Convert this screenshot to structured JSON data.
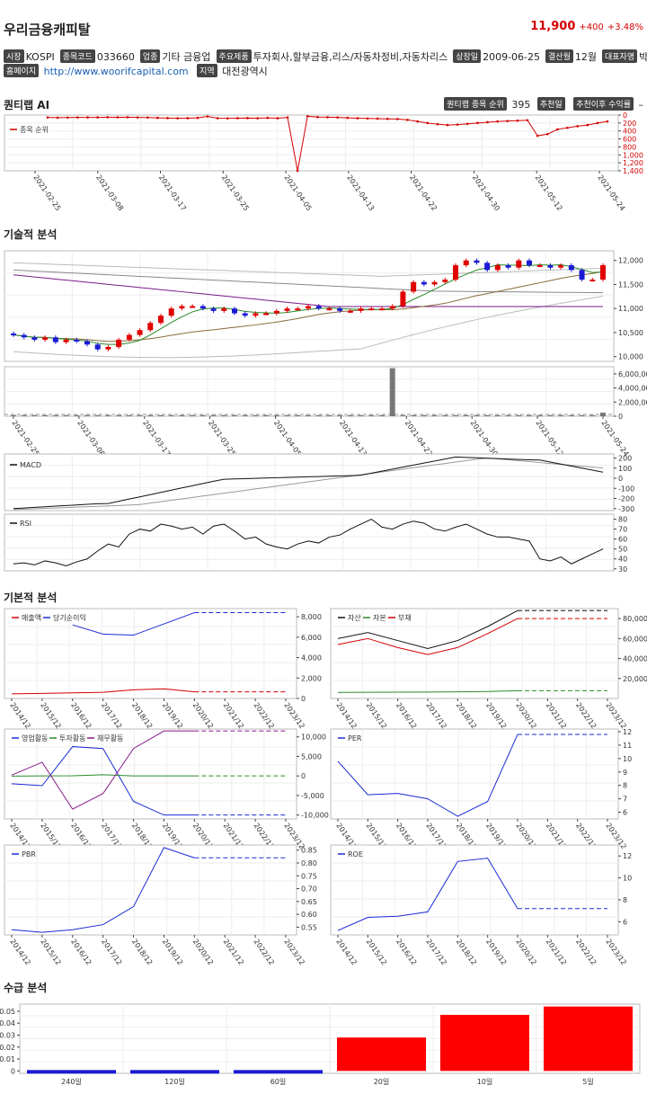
{
  "header": {
    "company": "우리금융캐피탈",
    "price": "11,900",
    "change": "+400",
    "change_pct": "+3.48%",
    "price_color": "#d40000"
  },
  "info_row1": [
    {
      "tag": "시장",
      "value": "KOSPI"
    },
    {
      "tag": "종목코드",
      "value": "033660"
    },
    {
      "tag": "업종",
      "value": "기타 금융업"
    },
    {
      "tag": "주요제품",
      "value": "투자회사,할부금융,리스/자동차정비,자동차리스"
    },
    {
      "tag": "상장일",
      "value": "2009-06-25"
    },
    {
      "tag": "결산월",
      "value": "12월"
    },
    {
      "tag": "대표자명",
      "value": "박경훈"
    }
  ],
  "info_row2": {
    "homepage_tag": "홈페이지",
    "homepage": "http://www.woorifcapital.com",
    "region_tag": "지역",
    "region": "대전광역시"
  },
  "quant": {
    "title": "퀀티랩 AI",
    "rank_tag": "퀀티랩 종목 순위",
    "rank": "395",
    "date_tag": "추천일",
    "return_tag": "추천이후 수익률",
    "return": "–"
  },
  "sections": {
    "technical": "기술적 분석",
    "fundamental": "기본적 분석",
    "supply": "수급 분석"
  },
  "dates": [
    "2021-02-25",
    "2021-03-08",
    "2021-03-17",
    "2021-03-25",
    "2021-04-05",
    "2021-04-13",
    "2021-04-22",
    "2021-04-30",
    "2021-05-12",
    "2021-05-24"
  ],
  "years": [
    "2014/12",
    "2015/12",
    "2016/12",
    "2017/12",
    "2018/12",
    "2019/12",
    "2020/12",
    "2021/12",
    "2022/12",
    "2023/12"
  ],
  "chart_data": [
    {
      "type": "line",
      "id": "rank",
      "series": [
        {
          "name": "종목 순위",
          "color": "#d40000",
          "values": [
            60,
            65,
            62,
            60,
            58,
            58,
            55,
            57,
            55,
            60,
            62,
            70,
            75,
            80,
            78,
            70,
            35,
            80,
            82,
            78,
            75,
            80,
            70,
            80,
            60,
            1400,
            30,
            50,
            55,
            60,
            70,
            80,
            85,
            90,
            95,
            100,
            120,
            160,
            200,
            230,
            250,
            240,
            220,
            200,
            180,
            160,
            150,
            140,
            130,
            520,
            480,
            360,
            320,
            280,
            250,
            200,
            160
          ]
        }
      ],
      "ylim": [
        0,
        1400
      ],
      "yticks": [
        "0",
        "200",
        "400",
        "600",
        "800",
        "1,000",
        "1,200",
        "1,400"
      ],
      "inverted": true
    },
    {
      "type": "candlestick",
      "id": "price",
      "yticks": [
        "10,000",
        "10,500",
        "11,000",
        "11,500",
        "12,000"
      ],
      "ylim": [
        9900,
        12200
      ],
      "close": [
        10450,
        10400,
        10350,
        10400,
        10300,
        10350,
        10320,
        10250,
        10150,
        10200,
        10350,
        10450,
        10550,
        10700,
        10850,
        11000,
        11050,
        11050,
        11000,
        10950,
        11000,
        10900,
        10850,
        10900,
        10900,
        10950,
        11000,
        11000,
        11050,
        11000,
        11000,
        10950,
        10950,
        11000,
        11000,
        11000,
        11050,
        11350,
        11550,
        11500,
        11550,
        11600,
        11900,
        12000,
        11950,
        11800,
        11900,
        11850,
        12000,
        11900,
        11900,
        11850,
        11900,
        11800,
        11600,
        11600,
        11900
      ],
      "ma5_color": "#2a8a2a",
      "ma20_color": "#8a6a3a",
      "ma60_color": "#7a1a8a",
      "ma120_color": "#888888"
    },
    {
      "type": "bar",
      "id": "volume",
      "yticks": [
        "0",
        "2,000,000",
        "4,000,000",
        "6,000,000"
      ],
      "ylim": [
        0,
        7000000
      ],
      "spike_index": 36,
      "spike_value": 6800000
    },
    {
      "type": "line",
      "id": "macd",
      "series": [
        {
          "name": "MACD",
          "color": "#111"
        }
      ],
      "yticks": [
        "-300",
        "-200",
        "-100",
        "0",
        "100",
        "200"
      ],
      "ylim": [
        -320,
        240
      ]
    },
    {
      "type": "line",
      "id": "rsi",
      "series": [
        {
          "name": "RSI",
          "color": "#111",
          "values": [
            35,
            36,
            34,
            38,
            36,
            33,
            37,
            40,
            48,
            55,
            52,
            65,
            70,
            68,
            75,
            73,
            70,
            72,
            65,
            73,
            75,
            68,
            60,
            62,
            55,
            52,
            50,
            55,
            58,
            56,
            62,
            64,
            70,
            75,
            80,
            72,
            70,
            75,
            78,
            76,
            70,
            68,
            72,
            75,
            70,
            65,
            62,
            62,
            60,
            58,
            40,
            38,
            42,
            35,
            40,
            45,
            50
          ]
        }
      ],
      "yticks": [
        "30",
        "40",
        "50",
        "60",
        "70",
        "80"
      ],
      "ylim": [
        28,
        85
      ]
    },
    {
      "type": "line",
      "id": "sales",
      "series": [
        {
          "name": "매출액",
          "color": "#d40000",
          "values": [
            450,
            500,
            550,
            600,
            850,
            950,
            650,
            650,
            650,
            650
          ]
        },
        {
          "name": "당기순이익",
          "color": "#1a2ad4",
          "values": [
            null,
            null,
            7200,
            6300,
            6200,
            7300,
            8400,
            8400,
            8400,
            8400
          ]
        }
      ],
      "yticks": [
        "0",
        "2,000",
        "4,000",
        "6,000",
        "8,000"
      ],
      "ylim": [
        0,
        8800
      ],
      "projected_from": 6
    },
    {
      "type": "line",
      "id": "assets",
      "series": [
        {
          "name": "자산",
          "color": "#111",
          "values": [
            60000,
            66000,
            58000,
            50000,
            58000,
            72000,
            88000,
            88000,
            88000,
            88000
          ]
        },
        {
          "name": "자본",
          "color": "#2a8a2a",
          "values": [
            6000,
            6200,
            6300,
            6400,
            6600,
            7000,
            7800,
            7800,
            7800,
            7800
          ]
        },
        {
          "name": "부채",
          "color": "#d40000",
          "values": [
            54000,
            60000,
            51000,
            44000,
            51000,
            65000,
            80000,
            80000,
            80000,
            80000
          ]
        }
      ],
      "yticks": [
        "20,000",
        "40,000",
        "60,000",
        "80,000"
      ],
      "ylim": [
        0,
        90000
      ],
      "projected_from": 6
    },
    {
      "type": "line",
      "id": "cashflow",
      "series": [
        {
          "name": "영업활동",
          "color": "#1a2ad4",
          "values": [
            -2000,
            -2500,
            7500,
            7000,
            -6500,
            -10000,
            -10000,
            -10000,
            -10000,
            -10000
          ]
        },
        {
          "name": "투자활동",
          "color": "#2a8a2a",
          "values": [
            -50,
            20,
            50,
            300,
            0,
            0,
            0,
            0,
            0,
            0
          ]
        },
        {
          "name": "재무활동",
          "color": "#8a1a8a",
          "values": [
            200,
            3500,
            -8500,
            -4500,
            7000,
            11500,
            11500,
            11500,
            11500,
            11500
          ]
        }
      ],
      "yticks": [
        "-10,000",
        "-5,000",
        "0",
        "5,000",
        "10,000"
      ],
      "ylim": [
        -11000,
        12000
      ],
      "projected_from": 6
    },
    {
      "type": "line",
      "id": "per",
      "series": [
        {
          "name": "PER",
          "color": "#1a2ad4",
          "values": [
            9.8,
            7.3,
            7.4,
            7.0,
            5.7,
            6.8,
            11.8,
            11.8,
            11.8,
            11.8
          ]
        }
      ],
      "yticks": [
        "6",
        "7",
        "8",
        "9",
        "10",
        "11",
        "12"
      ],
      "ylim": [
        5.5,
        12.2
      ],
      "projected_from": 6
    },
    {
      "type": "line",
      "id": "pbr",
      "series": [
        {
          "name": "PBR",
          "color": "#1a2ad4",
          "values": [
            0.54,
            0.53,
            0.54,
            0.56,
            0.63,
            0.86,
            0.82,
            0.82,
            0.82,
            0.82
          ]
        }
      ],
      "yticks": [
        "0.55",
        "0.60",
        "0.65",
        "0.70",
        "0.75",
        "0.80",
        "0.85"
      ],
      "ylim": [
        0.52,
        0.87
      ],
      "projected_from": 6
    },
    {
      "type": "line",
      "id": "roe",
      "series": [
        {
          "name": "ROE",
          "color": "#1a2ad4",
          "values": [
            5.2,
            6.4,
            6.5,
            6.9,
            11.5,
            11.8,
            7.2,
            7.2,
            7.2,
            7.2
          ]
        }
      ],
      "yticks": [
        "6",
        "8",
        "10",
        "12"
      ],
      "ylim": [
        4.8,
        13
      ],
      "projected_from": 6
    },
    {
      "type": "bar",
      "id": "supply",
      "categories": [
        "240일",
        "120일",
        "60일",
        "20일",
        "10일",
        "5일"
      ],
      "values": [
        0,
        0,
        0,
        0.028,
        0.047,
        0.054
      ],
      "colors": [
        "#1a1ad4",
        "#1a1ad4",
        "#1a1ad4",
        "#ff0000",
        "#ff0000",
        "#ff0000"
      ],
      "yticks": [
        "0",
        "0.01",
        "0.02",
        "0.03",
        "0.04",
        "0.05"
      ],
      "ylim": [
        -0.002,
        0.056
      ]
    }
  ]
}
